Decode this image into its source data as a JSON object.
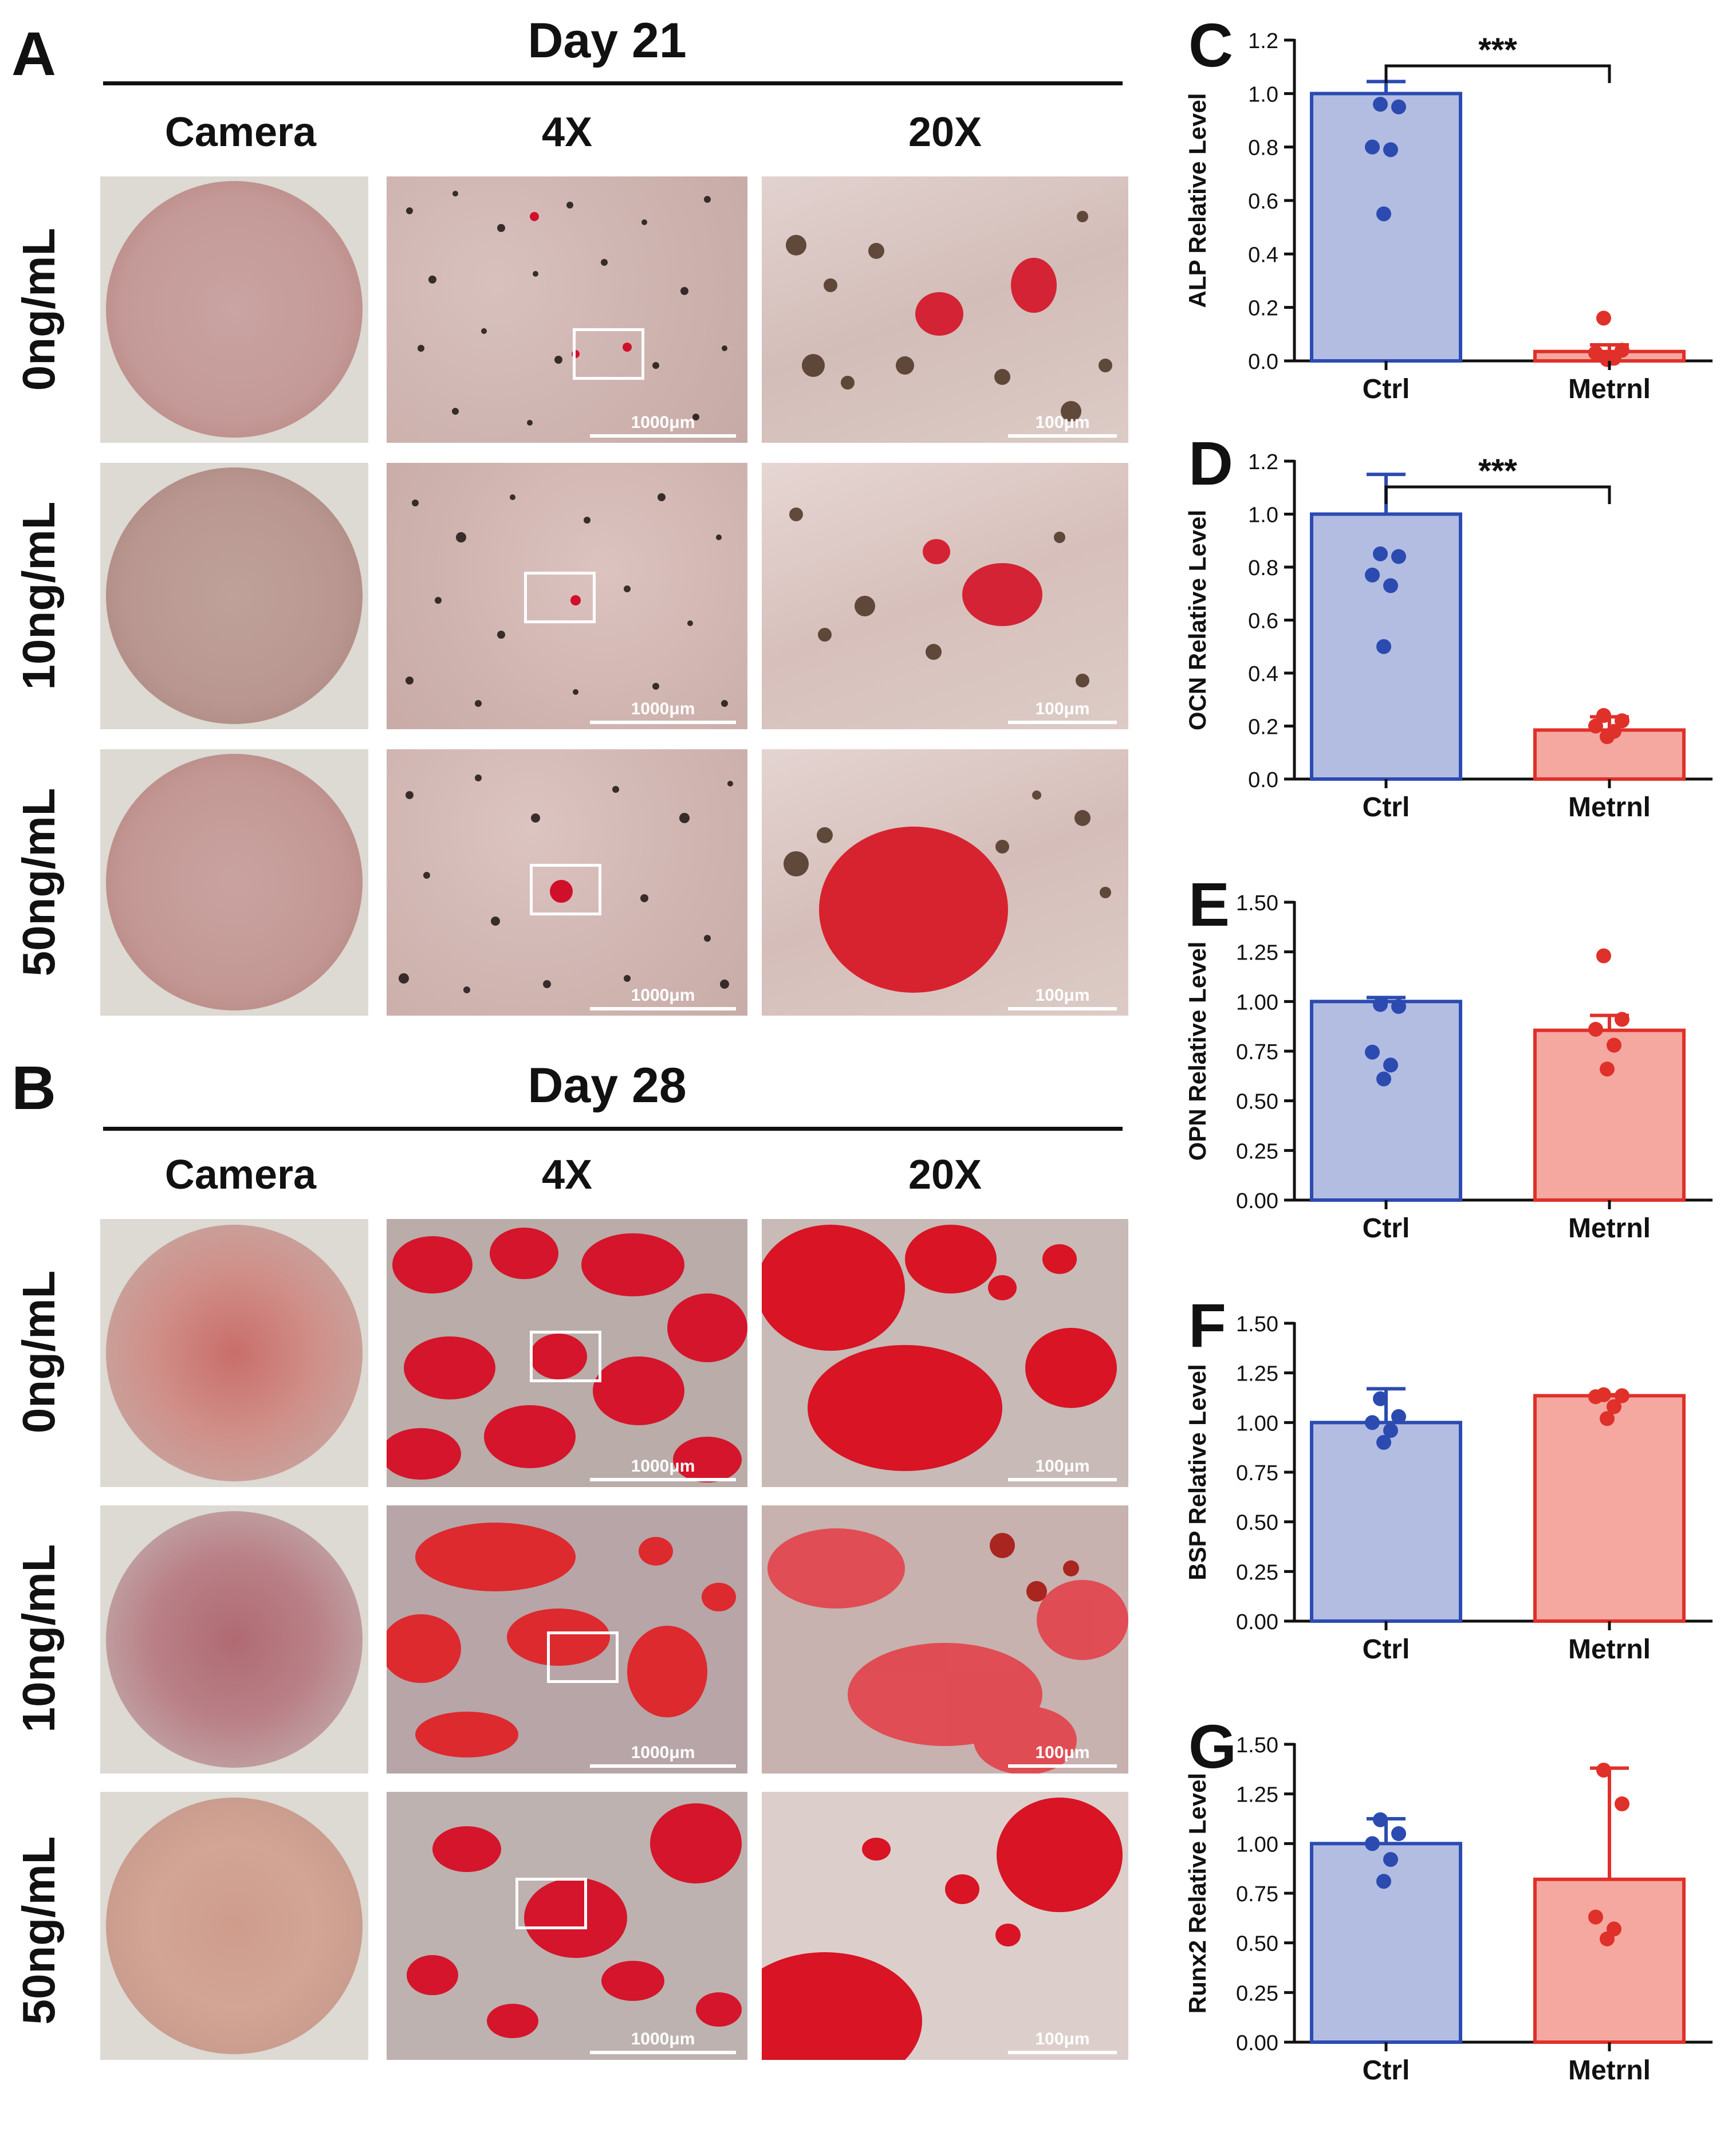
{
  "figure": {
    "panels": {
      "A": {
        "label": "A",
        "title": "Day 21",
        "columns": [
          "Camera",
          "4X",
          "20X"
        ],
        "rows": [
          "0ng/mL",
          "10ng/mL",
          "50ng/mL"
        ],
        "scalebar_4x": "1000μm",
        "scalebar_20x": "100μm"
      },
      "B": {
        "label": "B",
        "title": "Day 28",
        "columns": [
          "Camera",
          "4X",
          "20X"
        ],
        "rows": [
          "0ng/mL",
          "10ng/mL",
          "50ng/mL"
        ],
        "scalebar_4x": "1000μm",
        "scalebar_20x": "100μm"
      }
    },
    "colors": {
      "ctrl_fill": "#b3bde2",
      "ctrl_line": "#2b4bb0",
      "metrnl_fill": "#f4a8a0",
      "metrnl_line": "#e0302a"
    }
  },
  "chart_data": [
    {
      "panel": "C",
      "type": "bar",
      "ylabel": "ALP Relative Level",
      "categories": [
        "Ctrl",
        "Metrnl"
      ],
      "values": [
        1.0,
        0.035
      ],
      "errors": [
        0.045,
        0.025
      ],
      "points": [
        [
          0.96,
          0.95,
          0.8,
          0.79,
          0.55
        ],
        [
          0.16,
          0.04,
          0.03,
          0.01,
          0.005
        ]
      ],
      "ylim": [
        0,
        1.2
      ],
      "yticks": [
        "0.0",
        "0.2",
        "0.4",
        "0.6",
        "0.8",
        "1.0",
        "1.2"
      ],
      "significance": "***"
    },
    {
      "panel": "D",
      "type": "bar",
      "ylabel": "OCN Relative Level",
      "categories": [
        "Ctrl",
        "Metrnl"
      ],
      "values": [
        1.0,
        0.185
      ],
      "errors": [
        0.15,
        0.05
      ],
      "points": [
        [
          0.85,
          0.84,
          0.77,
          0.73,
          0.5
        ],
        [
          0.24,
          0.22,
          0.2,
          0.18,
          0.16
        ]
      ],
      "ylim": [
        0,
        1.2
      ],
      "yticks": [
        "0.0",
        "0.2",
        "0.4",
        "0.6",
        "0.8",
        "1.0",
        "1.2"
      ],
      "significance": "***"
    },
    {
      "panel": "E",
      "type": "bar",
      "ylabel": "OPN Relative Level",
      "categories": [
        "Ctrl",
        "Metrnl"
      ],
      "values": [
        1.0,
        0.855
      ],
      "errors": [
        0.02,
        0.075
      ],
      "points": [
        [
          0.985,
          0.975,
          0.745,
          0.68,
          0.61
        ],
        [
          1.23,
          0.91,
          0.86,
          0.78,
          0.66
        ]
      ],
      "ylim": [
        0,
        1.5
      ],
      "yticks": [
        "0.00",
        "0.25",
        "0.50",
        "0.75",
        "1.00",
        "1.25",
        "1.50"
      ],
      "significance": ""
    },
    {
      "panel": "F",
      "type": "bar",
      "ylabel": "BSP Relative Level",
      "categories": [
        "Ctrl",
        "Metrnl"
      ],
      "values": [
        1.0,
        1.135
      ],
      "errors": [
        0.17,
        0.005
      ],
      "points": [
        [
          1.12,
          1.03,
          1.0,
          0.96,
          0.9
        ],
        [
          1.14,
          1.135,
          1.13,
          1.08,
          1.02
        ]
      ],
      "ylim": [
        0,
        1.5
      ],
      "yticks": [
        "0.00",
        "0.25",
        "0.50",
        "0.75",
        "1.00",
        "1.25",
        "1.50"
      ],
      "significance": ""
    },
    {
      "panel": "G",
      "type": "bar",
      "ylabel": "Runx2 Relative Level",
      "categories": [
        "Ctrl",
        "Metrnl"
      ],
      "values": [
        1.0,
        0.82
      ],
      "errors": [
        0.125,
        0.56
      ],
      "points": [
        [
          1.12,
          1.05,
          1.0,
          0.92,
          0.81
        ],
        [
          1.37,
          1.2,
          0.63,
          0.57,
          0.52
        ]
      ],
      "ylim": [
        0,
        1.5
      ],
      "yticks": [
        "0.00",
        "0.25",
        "0.50",
        "0.75",
        "1.00",
        "1.25",
        "1.50"
      ],
      "significance": ""
    }
  ]
}
